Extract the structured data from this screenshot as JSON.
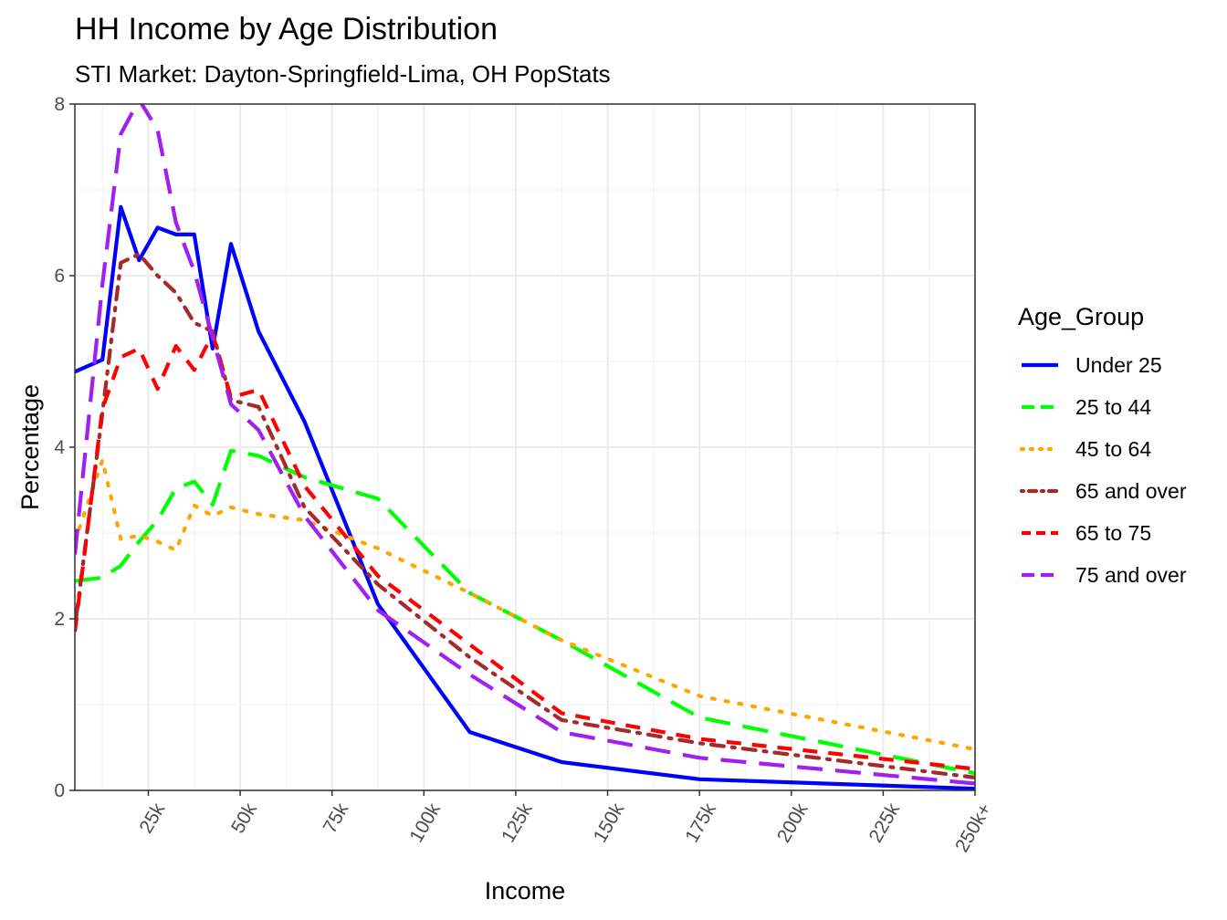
{
  "chart_data": {
    "type": "line",
    "title": "HH Income by Age Distribution",
    "subtitle": "STI Market: Dayton-Springfield-Lima, OH PopStats",
    "xlabel": "Income",
    "ylabel": "Percentage",
    "xlim": [
      5,
      250
    ],
    "ylim": [
      0,
      8
    ],
    "x_ticks": [
      25,
      50,
      75,
      100,
      125,
      150,
      175,
      200,
      225,
      250
    ],
    "x_tick_labels": [
      "25k",
      "50k",
      "75k",
      "100k",
      "125k",
      "150k",
      "175k",
      "200k",
      "225k",
      "250k+"
    ],
    "y_ticks": [
      0,
      2,
      4,
      6,
      8
    ],
    "y_tick_labels": [
      "0",
      "2",
      "4",
      "6",
      "8"
    ],
    "grid": true,
    "legend_title": "Age_Group",
    "legend_position": "right",
    "series": [
      {
        "name": "Under 25",
        "color": "#0000ff",
        "dash": "solid",
        "x": [
          5,
          12.5,
          17.5,
          22.5,
          27.5,
          32.5,
          37.5,
          42.5,
          47.5,
          55,
          67.5,
          87.5,
          112.5,
          137.5,
          175,
          250
        ],
        "y": [
          4.88,
          5.02,
          6.8,
          6.18,
          6.56,
          6.48,
          6.48,
          5.15,
          6.37,
          5.35,
          4.3,
          2.17,
          0.68,
          0.33,
          0.13,
          0.02
        ]
      },
      {
        "name": "25 to 44",
        "color": "#00ff00",
        "dash": "longdash",
        "x": [
          5,
          12.5,
          17.5,
          22.5,
          27.5,
          32.5,
          37.5,
          42.5,
          47.5,
          55,
          67.5,
          87.5,
          112.5,
          137.5,
          175,
          250
        ],
        "y": [
          2.44,
          2.48,
          2.62,
          2.9,
          3.15,
          3.52,
          3.6,
          3.33,
          3.96,
          3.9,
          3.65,
          3.4,
          2.3,
          1.75,
          0.85,
          0.2
        ]
      },
      {
        "name": "45 to 64",
        "color": "#ffa500",
        "dash": "dotted",
        "x": [
          5,
          12.5,
          17.5,
          22.5,
          27.5,
          32.5,
          37.5,
          42.5,
          47.5,
          55,
          67.5,
          87.5,
          112.5,
          137.5,
          175,
          250
        ],
        "y": [
          2.9,
          3.85,
          2.93,
          2.97,
          2.9,
          2.8,
          3.32,
          3.2,
          3.3,
          3.22,
          3.15,
          2.82,
          2.3,
          1.75,
          1.1,
          0.48
        ]
      },
      {
        "name": "65 and over",
        "color": "#a52a2a",
        "dash": "dotdash",
        "x": [
          5,
          12.5,
          17.5,
          22.5,
          27.5,
          32.5,
          37.5,
          42.5,
          47.5,
          55,
          67.5,
          87.5,
          112.5,
          137.5,
          175,
          250
        ],
        "y": [
          1.9,
          4.4,
          6.15,
          6.25,
          6.0,
          5.8,
          5.45,
          5.35,
          4.55,
          4.47,
          3.3,
          2.4,
          1.55,
          0.82,
          0.55,
          0.15
        ]
      },
      {
        "name": "65 to 75",
        "color": "#ff0000",
        "dash": "dashed",
        "x": [
          5,
          12.5,
          17.5,
          22.5,
          27.5,
          32.5,
          37.5,
          42.5,
          47.5,
          55,
          67.5,
          87.5,
          112.5,
          137.5,
          175,
          250
        ],
        "y": [
          1.85,
          4.45,
          5.05,
          5.15,
          4.68,
          5.18,
          4.9,
          5.32,
          4.58,
          4.67,
          3.55,
          2.5,
          1.7,
          0.9,
          0.6,
          0.25
        ]
      },
      {
        "name": "75 and over",
        "color": "#a020f0",
        "dash": "longdash",
        "x": [
          5,
          12.5,
          17.5,
          22.5,
          27.5,
          32.5,
          37.5,
          42.5,
          47.5,
          55,
          67.5,
          87.5,
          112.5,
          137.5,
          175,
          250
        ],
        "y": [
          2.75,
          5.9,
          7.65,
          8.05,
          7.7,
          6.62,
          6.05,
          5.28,
          4.5,
          4.2,
          3.2,
          2.1,
          1.35,
          0.68,
          0.38,
          0.08
        ]
      }
    ]
  }
}
